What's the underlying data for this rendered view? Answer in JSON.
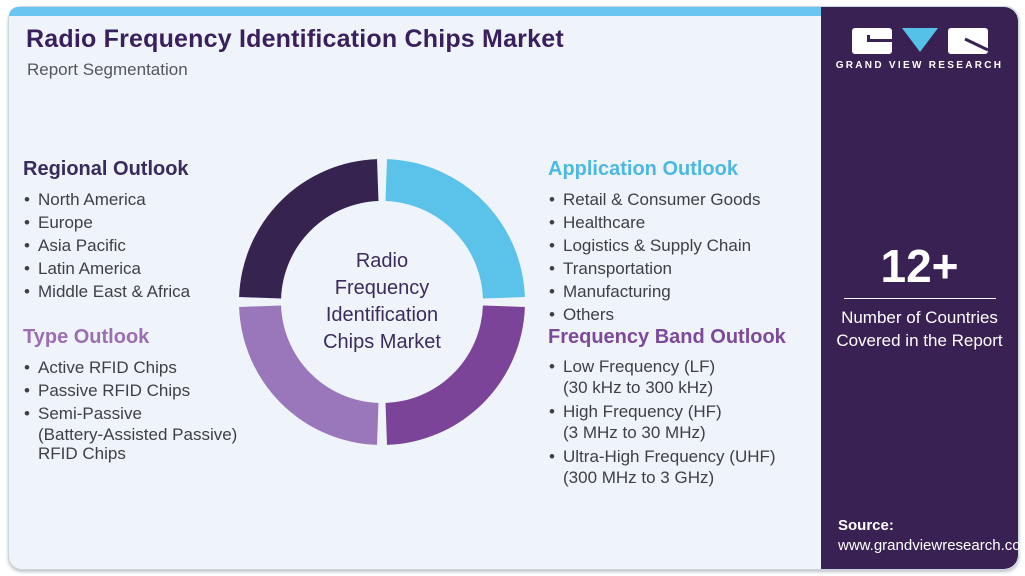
{
  "header": {
    "title": "Radio Frequency Identification Chips Market",
    "subtitle": "Report Segmentation"
  },
  "sections": {
    "regional": {
      "heading": "Regional Outlook",
      "items": [
        "North America",
        "Europe",
        "Asia Pacific",
        "Latin America",
        "Middle East & Africa"
      ]
    },
    "type": {
      "heading": "Type Outlook",
      "items": [
        "Active RFID Chips",
        "Passive RFID Chips",
        [
          "Semi-Passive",
          "(Battery-Assisted Passive)",
          "RFID Chips"
        ]
      ]
    },
    "application": {
      "heading": "Application Outlook",
      "items": [
        "Retail & Consumer Goods",
        "Healthcare",
        "Logistics & Supply Chain",
        "Transportation",
        "Manufacturing",
        "Others"
      ]
    },
    "frequency": {
      "heading": "Frequency Band Outlook",
      "items": [
        [
          "Low Frequency (LF)",
          "(30 kHz to 300 kHz)"
        ],
        [
          "High Frequency (HF)",
          "(3 MHz to 30 MHz)"
        ],
        [
          "Ultra-High Frequency (UHF)",
          "(300 MHz to 3 GHz)"
        ]
      ]
    }
  },
  "chart_data": {
    "type": "donut",
    "title": "Radio Frequency Identification Chips Market",
    "center_lines": [
      "Radio",
      "Frequency",
      "Identification",
      "Chips Market"
    ],
    "gap_degrees": 2,
    "legend_position": "none",
    "segments": [
      {
        "name": "Application Outlook",
        "value": 25,
        "color": "#5bc2e9"
      },
      {
        "name": "Frequency Band Outlook",
        "value": 25,
        "color": "#7c4499"
      },
      {
        "name": "Type Outlook",
        "value": 25,
        "color": "#9a76bb"
      },
      {
        "name": "Regional Outlook",
        "value": 25,
        "color": "#362350"
      }
    ]
  },
  "sidebar": {
    "brand": "GRAND VIEW RESEARCH",
    "stat_value": "12+",
    "stat_label_lines": [
      "Number of Countries",
      "Covered in the Report"
    ],
    "source_label": "Source:",
    "source_url": "www.grandviewresearch.com"
  },
  "colors": {
    "accent_bar": "#6ac6f0",
    "background": "#eef4f9",
    "sidebar_bg": "#3a2153",
    "title_text": "#3a1f5e",
    "body_text": "#3f3f47",
    "heading_regional": "#3a2a5e",
    "heading_type": "#9c6eb2",
    "heading_application": "#4cb8e6",
    "heading_frequency": "#7d4a9b",
    "logo_v": "#56c1e8"
  }
}
